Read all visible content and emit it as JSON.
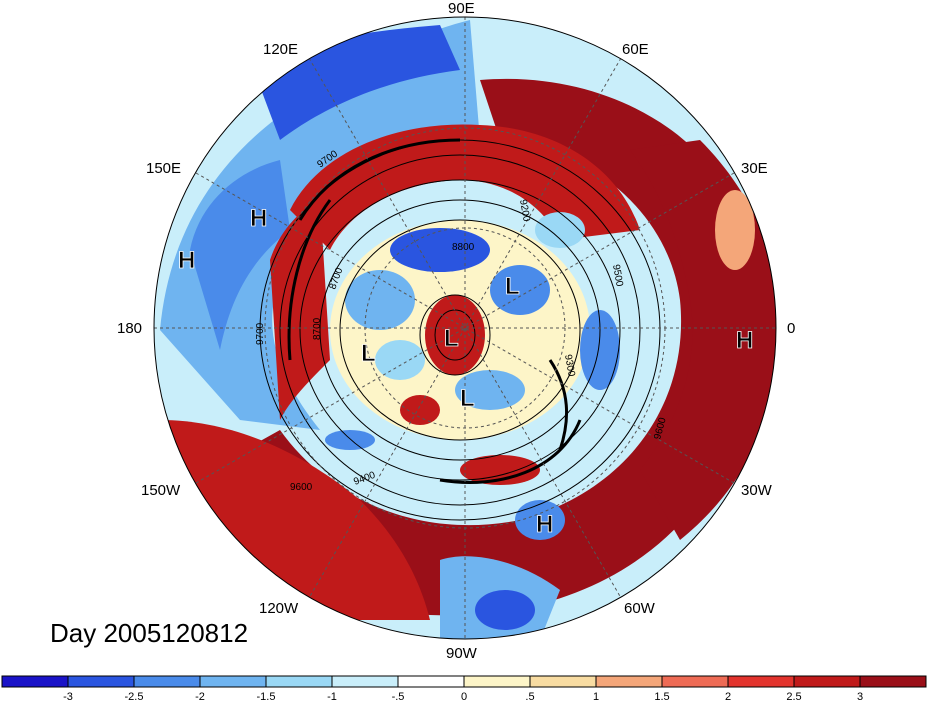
{
  "title": "Day 2005120812",
  "longitude_labels": [
    {
      "id": "lon-90e",
      "text": "90E"
    },
    {
      "id": "lon-60e",
      "text": "60E"
    },
    {
      "id": "lon-30e",
      "text": "30E"
    },
    {
      "id": "lon-0",
      "text": "0"
    },
    {
      "id": "lon-30w",
      "text": "30W"
    },
    {
      "id": "lon-60w",
      "text": "60W"
    },
    {
      "id": "lon-90w",
      "text": "90W"
    },
    {
      "id": "lon-120w",
      "text": "120W"
    },
    {
      "id": "lon-150w",
      "text": "150W"
    },
    {
      "id": "lon-180",
      "text": "180"
    },
    {
      "id": "lon-150e",
      "text": "150E"
    },
    {
      "id": "lon-120e",
      "text": "120E"
    }
  ],
  "pressure_centers": [
    {
      "type": "H",
      "name": "high-east"
    },
    {
      "type": "H",
      "name": "high-southwest"
    },
    {
      "type": "H",
      "name": "high-west-1"
    },
    {
      "type": "H",
      "name": "high-west-2"
    },
    {
      "type": "L",
      "name": "low-pole"
    },
    {
      "type": "L",
      "name": "low-west"
    },
    {
      "type": "L",
      "name": "low-south"
    },
    {
      "type": "L",
      "name": "low-east"
    }
  ],
  "contour_labels": [
    "9700",
    "9600",
    "8700",
    "8800",
    "9200",
    "9300",
    "9500",
    "9400",
    "9600",
    "8700",
    "9700"
  ],
  "colorbar": {
    "colors": [
      "#1a13c8",
      "#2a55e0",
      "#4a8bea",
      "#6fb4f0",
      "#9ad8f5",
      "#c9eefa",
      "#ffffff",
      "#fdf5c8",
      "#f8dca2",
      "#f4a679",
      "#ee6b55",
      "#e2332d",
      "#c01a1a",
      "#9a0f18"
    ],
    "tick_labels": [
      "-3",
      "-2.5",
      "-2",
      "-1.5",
      "-1",
      "-.5",
      "0",
      ".5",
      "1",
      "1.5",
      "2",
      "2.5",
      "3"
    ]
  }
}
